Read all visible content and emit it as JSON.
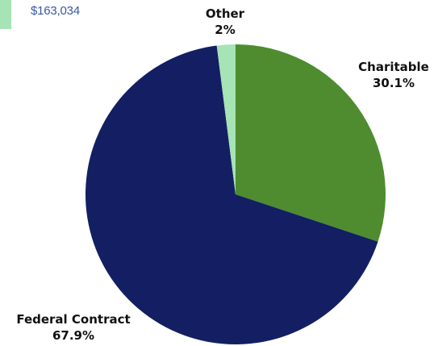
{
  "legend": {
    "value": "$163,034",
    "swatch_color": "#a6e3b5"
  },
  "chart_data": {
    "type": "pie",
    "slices": [
      {
        "label": "Charitable",
        "value": 30.1,
        "value_label": "30.1%",
        "color": "#4e8c2f"
      },
      {
        "label": "Federal Contract",
        "value": 67.9,
        "value_label": "67.9%",
        "color": "#131f62"
      },
      {
        "label": "Other",
        "value": 2,
        "value_label": "2%",
        "color": "#a6e3b5"
      }
    ],
    "start": "12 o'clock",
    "direction": "clockwise"
  }
}
